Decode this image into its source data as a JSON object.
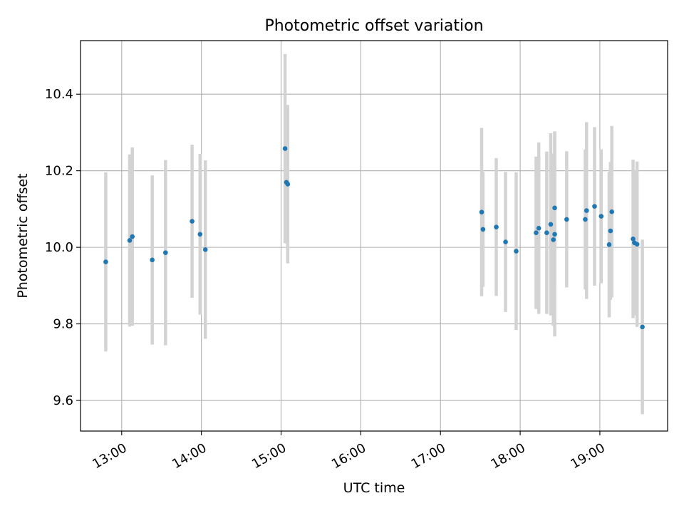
{
  "chart_data": {
    "type": "scatter",
    "title": "Photometric offset variation",
    "xlabel": "UTC time",
    "ylabel": "Photometric offset",
    "xlim": [
      "12:29",
      "19:51"
    ],
    "ylim": [
      9.52,
      10.54
    ],
    "xticks": [
      "13:00",
      "14:00",
      "15:00",
      "16:00",
      "17:00",
      "18:00",
      "19:00"
    ],
    "yticks": [
      9.6,
      9.8,
      10.0,
      10.2,
      10.4
    ],
    "grid": true,
    "colors": {
      "marker": "#1f77b4",
      "errorbar": "#d3d3d3",
      "grid": "#b0b0b0"
    },
    "points": [
      {
        "x": "12:48",
        "y": 9.962,
        "err": 0.234
      },
      {
        "x": "13:06",
        "y": 10.018,
        "err": 0.225
      },
      {
        "x": "13:08",
        "y": 10.028,
        "err": 0.233
      },
      {
        "x": "13:23",
        "y": 9.967,
        "err": 0.221
      },
      {
        "x": "13:33",
        "y": 9.986,
        "err": 0.242
      },
      {
        "x": "13:53",
        "y": 10.068,
        "err": 0.2
      },
      {
        "x": "13:59",
        "y": 10.034,
        "err": 0.21
      },
      {
        "x": "14:03",
        "y": 9.994,
        "err": 0.233
      },
      {
        "x": "15:03",
        "y": 10.258,
        "err": 0.247
      },
      {
        "x": "15:04",
        "y": 10.17,
        "err": 0.16
      },
      {
        "x": "15:05",
        "y": 10.165,
        "err": 0.207
      },
      {
        "x": "17:31",
        "y": 10.092,
        "err": 0.22
      },
      {
        "x": "17:32",
        "y": 10.047,
        "err": 0.15
      },
      {
        "x": "17:42",
        "y": 10.053,
        "err": 0.18
      },
      {
        "x": "17:49",
        "y": 10.014,
        "err": 0.183
      },
      {
        "x": "17:57",
        "y": 9.99,
        "err": 0.206
      },
      {
        "x": "18:12",
        "y": 10.038,
        "err": 0.199
      },
      {
        "x": "18:14",
        "y": 10.05,
        "err": 0.224
      },
      {
        "x": "18:20",
        "y": 10.038,
        "err": 0.212
      },
      {
        "x": "18:23",
        "y": 10.06,
        "err": 0.238
      },
      {
        "x": "18:25",
        "y": 10.02,
        "err": 0.225
      },
      {
        "x": "18:26",
        "y": 10.034,
        "err": 0.267
      },
      {
        "x": "18:26",
        "y": 10.103,
        "err": 0.2
      },
      {
        "x": "18:35",
        "y": 10.073,
        "err": 0.178
      },
      {
        "x": "18:49",
        "y": 10.073,
        "err": 0.183
      },
      {
        "x": "18:50",
        "y": 10.096,
        "err": 0.231
      },
      {
        "x": "18:56",
        "y": 10.107,
        "err": 0.207
      },
      {
        "x": "19:01",
        "y": 10.081,
        "err": 0.175
      },
      {
        "x": "19:07",
        "y": 10.007,
        "err": 0.19
      },
      {
        "x": "19:08",
        "y": 10.043,
        "err": 0.18
      },
      {
        "x": "19:09",
        "y": 10.093,
        "err": 0.224
      },
      {
        "x": "19:25",
        "y": 10.022,
        "err": 0.207
      },
      {
        "x": "19:26",
        "y": 10.012,
        "err": 0.19
      },
      {
        "x": "19:28",
        "y": 10.008,
        "err": 0.216
      },
      {
        "x": "19:32",
        "y": 9.792,
        "err": 0.228
      }
    ]
  }
}
